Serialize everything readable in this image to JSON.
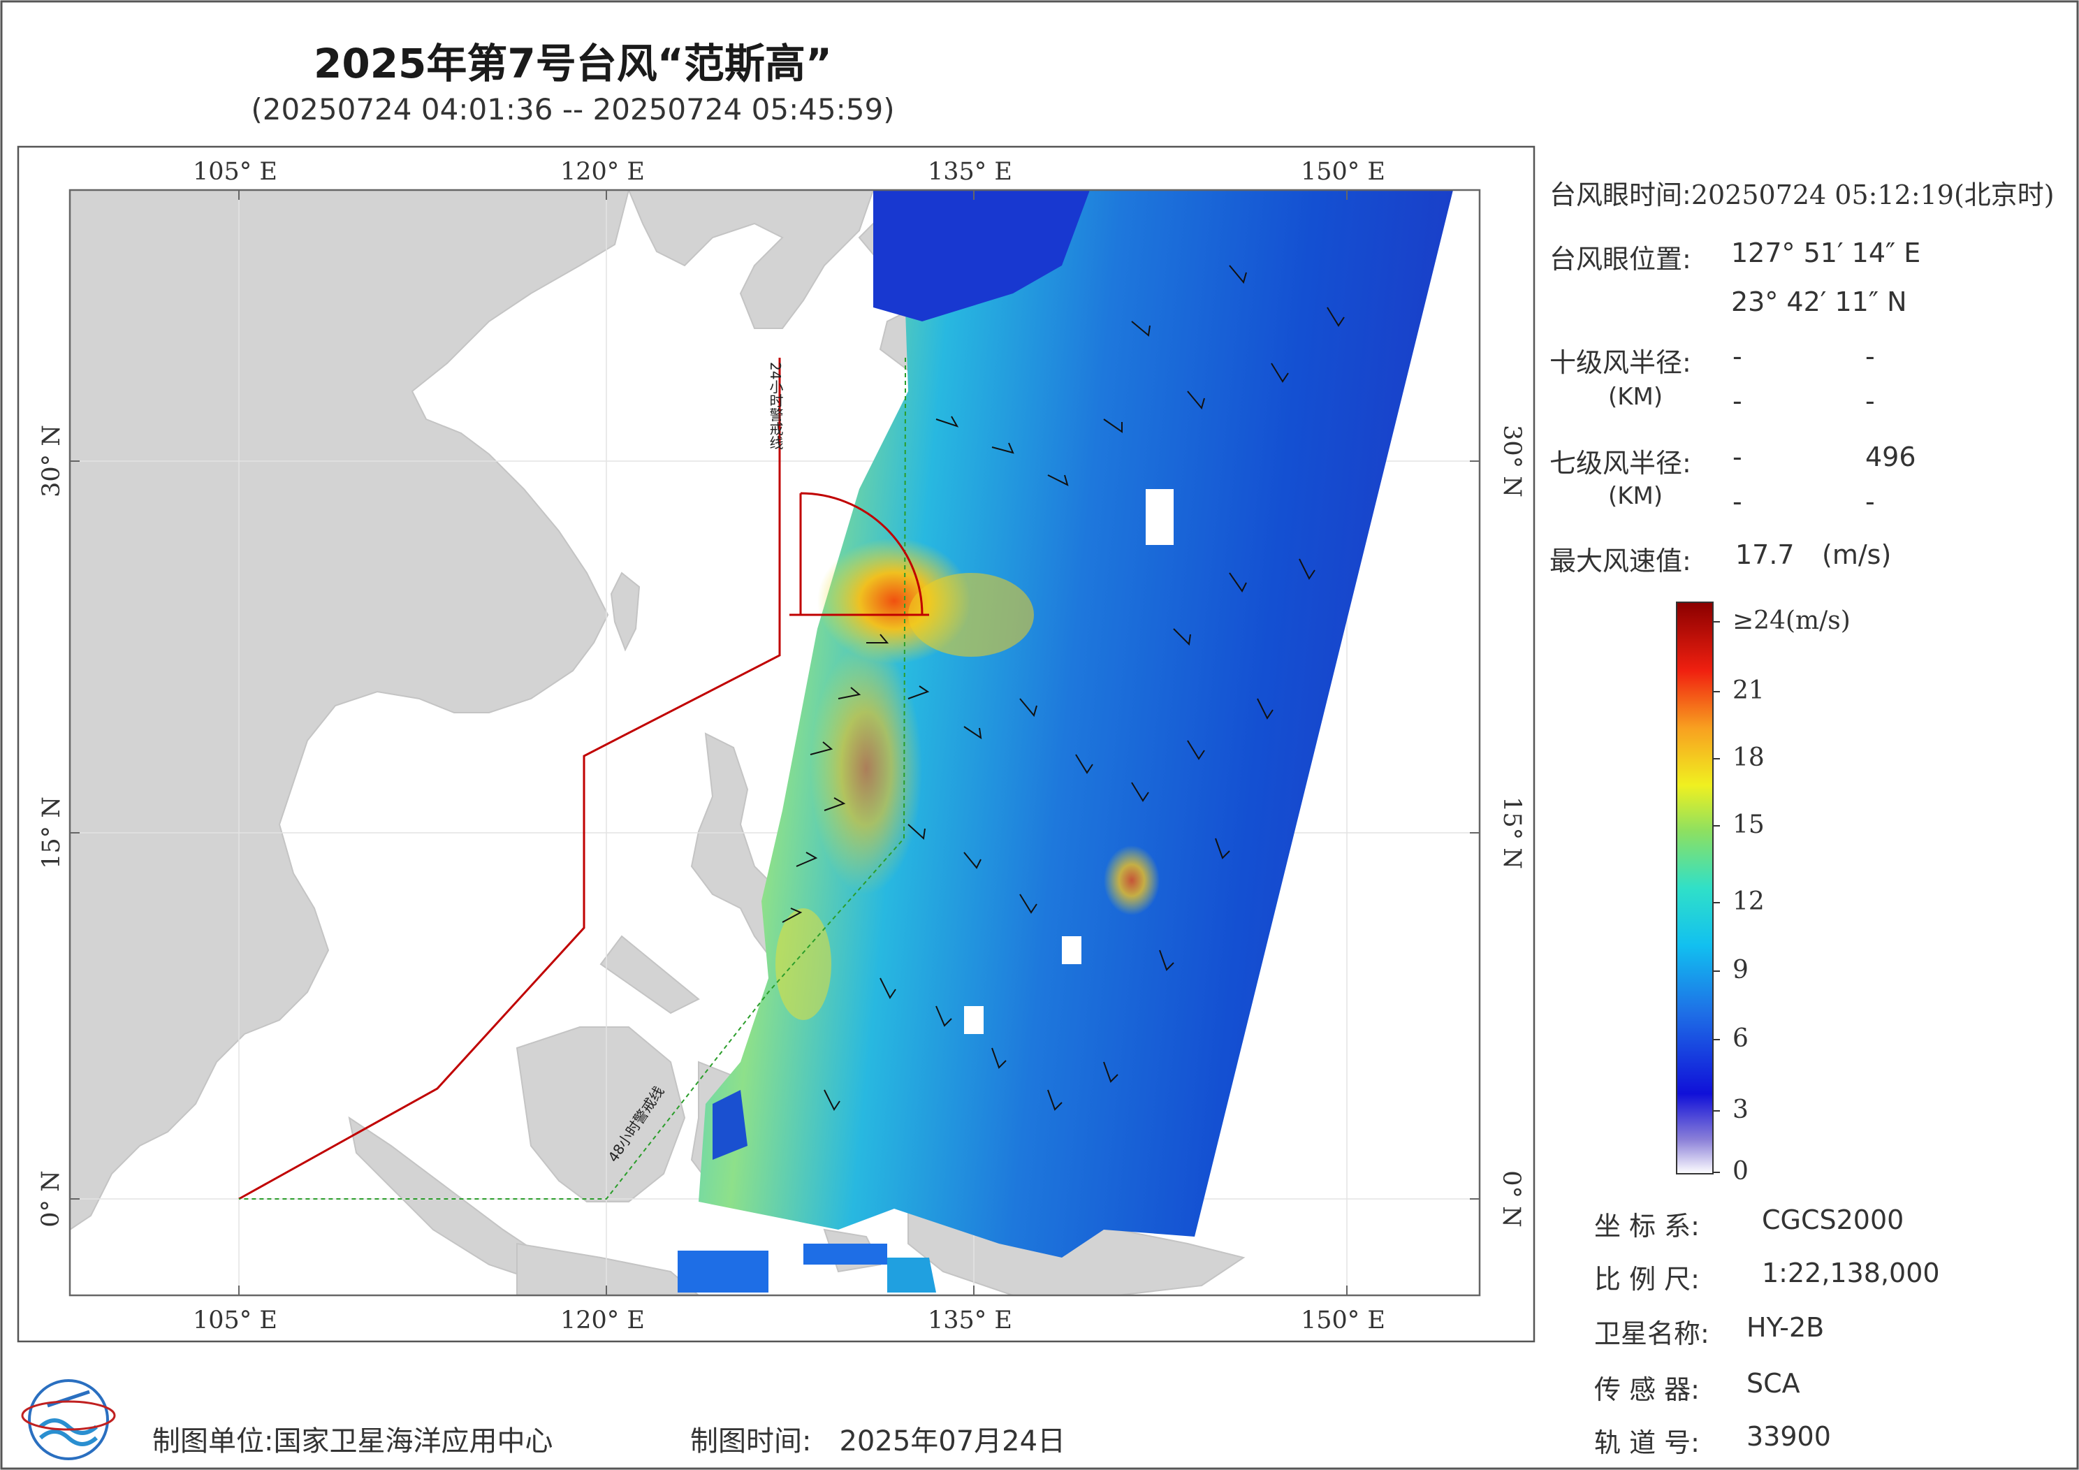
{
  "header": {
    "title": "2025年第7号台风“范斯高”",
    "subtitle": "(20250724 04:01:36 -- 20250724 05:45:59)"
  },
  "map": {
    "lon_ticks_top": [
      "105° E",
      "120° E",
      "135° E",
      "150° E"
    ],
    "lon_ticks_bottom": [
      "105° E",
      "120° E",
      "135° E",
      "150° E"
    ],
    "lat_ticks_left": [
      "30° N",
      "15° N",
      "0° N"
    ],
    "lat_ticks_right": [
      "30° N",
      "15° N",
      "0° N"
    ],
    "warning_line_24h": "24小时警戒线",
    "warning_line_48h": "48小时警戒线",
    "colors": {
      "land": "#d3d3d3",
      "sea": "#ffffff",
      "warning_24h": "#c00000",
      "warning_48h": "#2a9d2a",
      "wind_radius": "#c00000"
    }
  },
  "info": {
    "eye_time_label": "台风眼时间:",
    "eye_time_value": "20250724 05:12:19(北京时)",
    "eye_pos_label": "台风眼位置:",
    "eye_lon": "127° 51′ 14″ E",
    "eye_lat": "23° 42′ 11″ N",
    "r10_label": "十级风半径:",
    "r10_unit": "(KM)",
    "r10_values": [
      "-",
      "-",
      "-",
      "-"
    ],
    "r7_label": "七级风半径:",
    "r7_unit": "(KM)",
    "r7_values": [
      "-",
      "496",
      "-",
      "-"
    ],
    "max_wind_label": "最大风速值:",
    "max_wind_value": "17.7",
    "max_wind_unit": "(m/s)"
  },
  "colorbar": {
    "labels": [
      "≥24(m/s)",
      "21",
      "18",
      "15",
      "12",
      "9",
      "6",
      "3",
      "0"
    ],
    "values": [
      24,
      21,
      18,
      15,
      12,
      9,
      6,
      3,
      0
    ]
  },
  "meta": {
    "crs_label": "坐 标 系:",
    "crs_value": "CGCS2000",
    "scale_label": "比 例 尺:",
    "scale_value": "1:22,138,000",
    "satellite_label": "卫星名称:",
    "satellite_value": "HY-2B",
    "sensor_label": "传 感 器:",
    "sensor_value": "SCA",
    "orbit_label": "轨 道 号:",
    "orbit_value": "33900"
  },
  "footer": {
    "unit_label": "制图单位:",
    "unit_value": "国家卫星海洋应用中心",
    "time_label": "制图时间:",
    "time_value": "2025年07月24日"
  }
}
